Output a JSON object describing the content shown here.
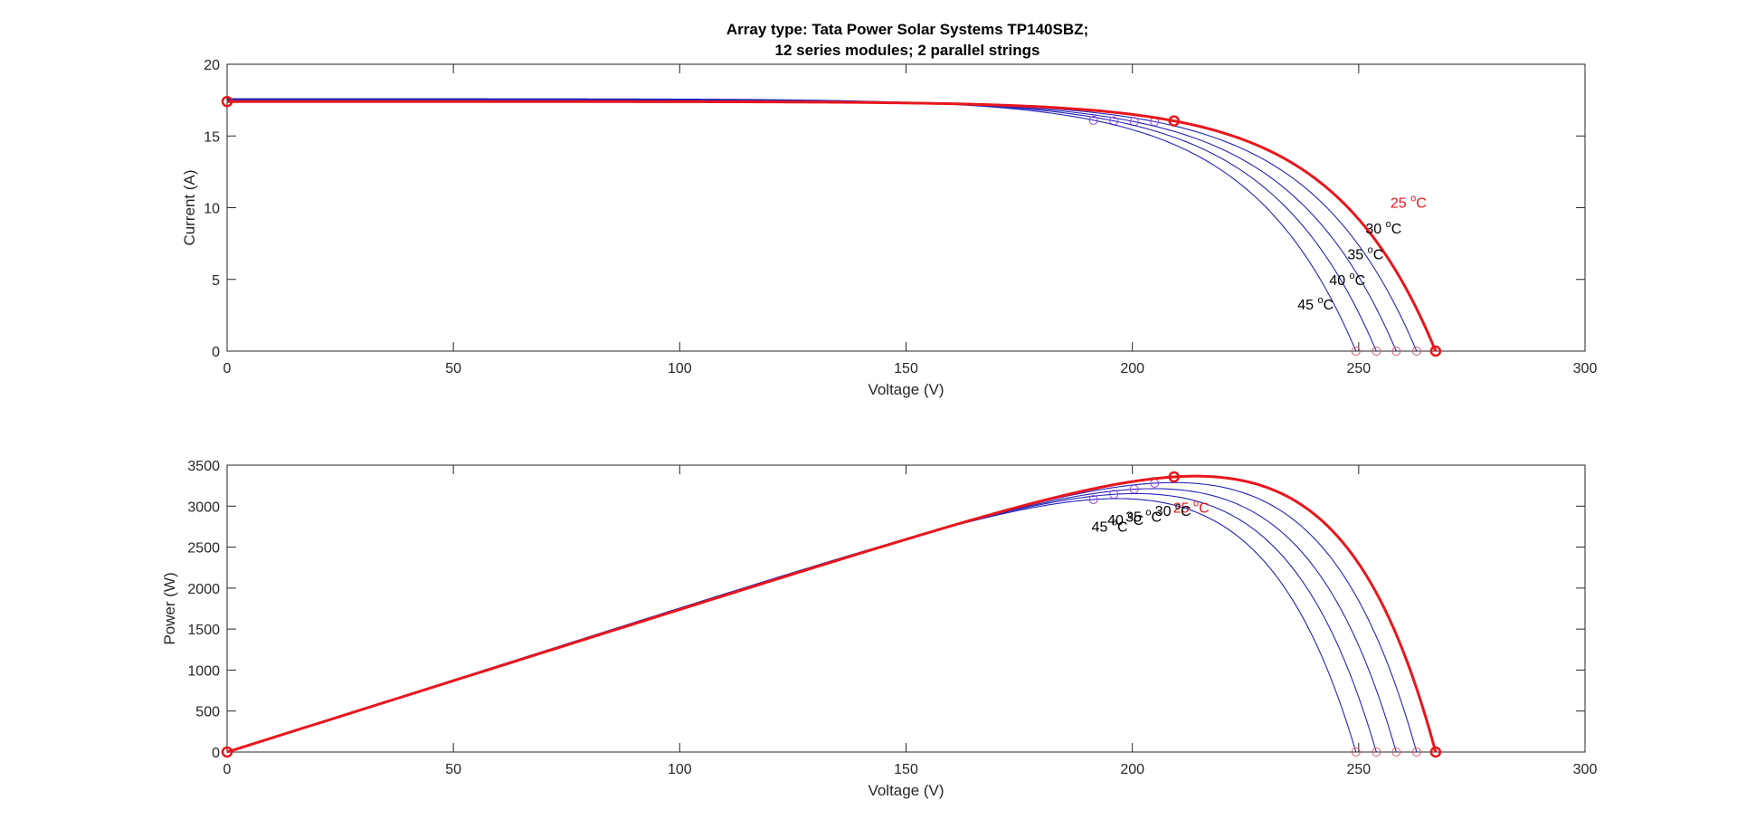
{
  "figure": {
    "title_line1": "Array type: Tata Power Solar Systems TP140SBZ;",
    "title_line2": "12 series modules; 2 parallel strings"
  },
  "colors": {
    "highlight": "#e8161c",
    "curve": "#2424b8",
    "mpp_marker": "#9b45d6",
    "voc_marker": "#d05a6a",
    "axes": "#262626",
    "label_default": "#000000"
  },
  "chart_data": [
    {
      "type": "line",
      "title": "Array type: Tata Power Solar Systems TP140SBZ; 12 series modules; 2 parallel strings",
      "xlabel": "Voltage (V)",
      "ylabel": "Current (A)",
      "xlim": [
        0,
        300
      ],
      "ylim": [
        0,
        20
      ],
      "xticks": [
        "0",
        "50",
        "100",
        "150",
        "200",
        "250",
        "300"
      ],
      "yticks": [
        "0",
        "5",
        "10",
        "15",
        "20"
      ],
      "grid": false,
      "series": [
        {
          "name": "25 °C",
          "label_main": "25 ",
          "label_sup": "o",
          "label_unit": "C",
          "highlight": true,
          "isc": 17.4,
          "voc": 267.0,
          "vmp": 209.2,
          "imp": 16.05,
          "label_pos": [
            257,
            10.0
          ]
        },
        {
          "name": "30 °C",
          "label_main": "30 ",
          "label_sup": "o",
          "label_unit": "C",
          "highlight": false,
          "isc": 17.45,
          "voc": 262.8,
          "vmp": 204.9,
          "imp": 16.0,
          "label_pos": [
            251.5,
            8.2
          ]
        },
        {
          "name": "35 °C",
          "label_main": "35 ",
          "label_sup": "o",
          "label_unit": "C",
          "highlight": false,
          "isc": 17.5,
          "voc": 258.3,
          "vmp": 200.4,
          "imp": 16.0,
          "label_pos": [
            247.5,
            6.4
          ]
        },
        {
          "name": "40 °C",
          "label_main": "40 ",
          "label_sup": "o",
          "label_unit": "C",
          "highlight": false,
          "isc": 17.55,
          "voc": 253.9,
          "vmp": 195.9,
          "imp": 16.05,
          "label_pos": [
            243.5,
            4.6
          ]
        },
        {
          "name": "45 °C",
          "label_main": "45 ",
          "label_sup": "o",
          "label_unit": "C",
          "highlight": false,
          "isc": 17.6,
          "voc": 249.4,
          "vmp": 191.4,
          "imp": 16.1,
          "label_pos": [
            236.5,
            2.9
          ]
        }
      ]
    },
    {
      "type": "line",
      "xlabel": "Voltage (V)",
      "ylabel": "Power (W)",
      "xlim": [
        0,
        300
      ],
      "ylim": [
        0,
        3500
      ],
      "xticks": [
        "0",
        "50",
        "100",
        "150",
        "200",
        "250",
        "300"
      ],
      "yticks": [
        "0",
        "500",
        "1000",
        "1500",
        "2000",
        "2500",
        "3000",
        "3500"
      ],
      "grid": false,
      "series": [
        {
          "name": "25 °C",
          "label_main": "25 ",
          "label_sup": "o",
          "label_unit": "C",
          "highlight": true,
          "pmp": 3357,
          "vmp": 209.2,
          "voc": 267.0,
          "label_pos": [
            209,
            2920
          ]
        },
        {
          "name": "30 °C",
          "label_main": "30 ",
          "label_sup": "o",
          "label_unit": "C",
          "highlight": false,
          "pmp": 3280,
          "vmp": 204.9,
          "voc": 262.8,
          "label_pos": [
            205,
            2880
          ]
        },
        {
          "name": "35 °C",
          "label_main": "35 ",
          "label_sup": "o",
          "label_unit": "C",
          "highlight": false,
          "pmp": 3206,
          "vmp": 200.4,
          "voc": 258.3,
          "label_pos": [
            198.5,
            2810
          ]
        },
        {
          "name": "40 °C",
          "label_main": "40 ",
          "label_sup": "o",
          "label_unit": "C",
          "highlight": false,
          "pmp": 3144,
          "vmp": 195.9,
          "voc": 253.9,
          "label_pos": [
            194.5,
            2770
          ]
        },
        {
          "name": "45 °C",
          "label_main": "45 ",
          "label_sup": "o",
          "label_unit": "C",
          "highlight": false,
          "pmp": 3081,
          "vmp": 191.4,
          "voc": 249.4,
          "label_pos": [
            191,
            2690
          ]
        }
      ]
    }
  ]
}
